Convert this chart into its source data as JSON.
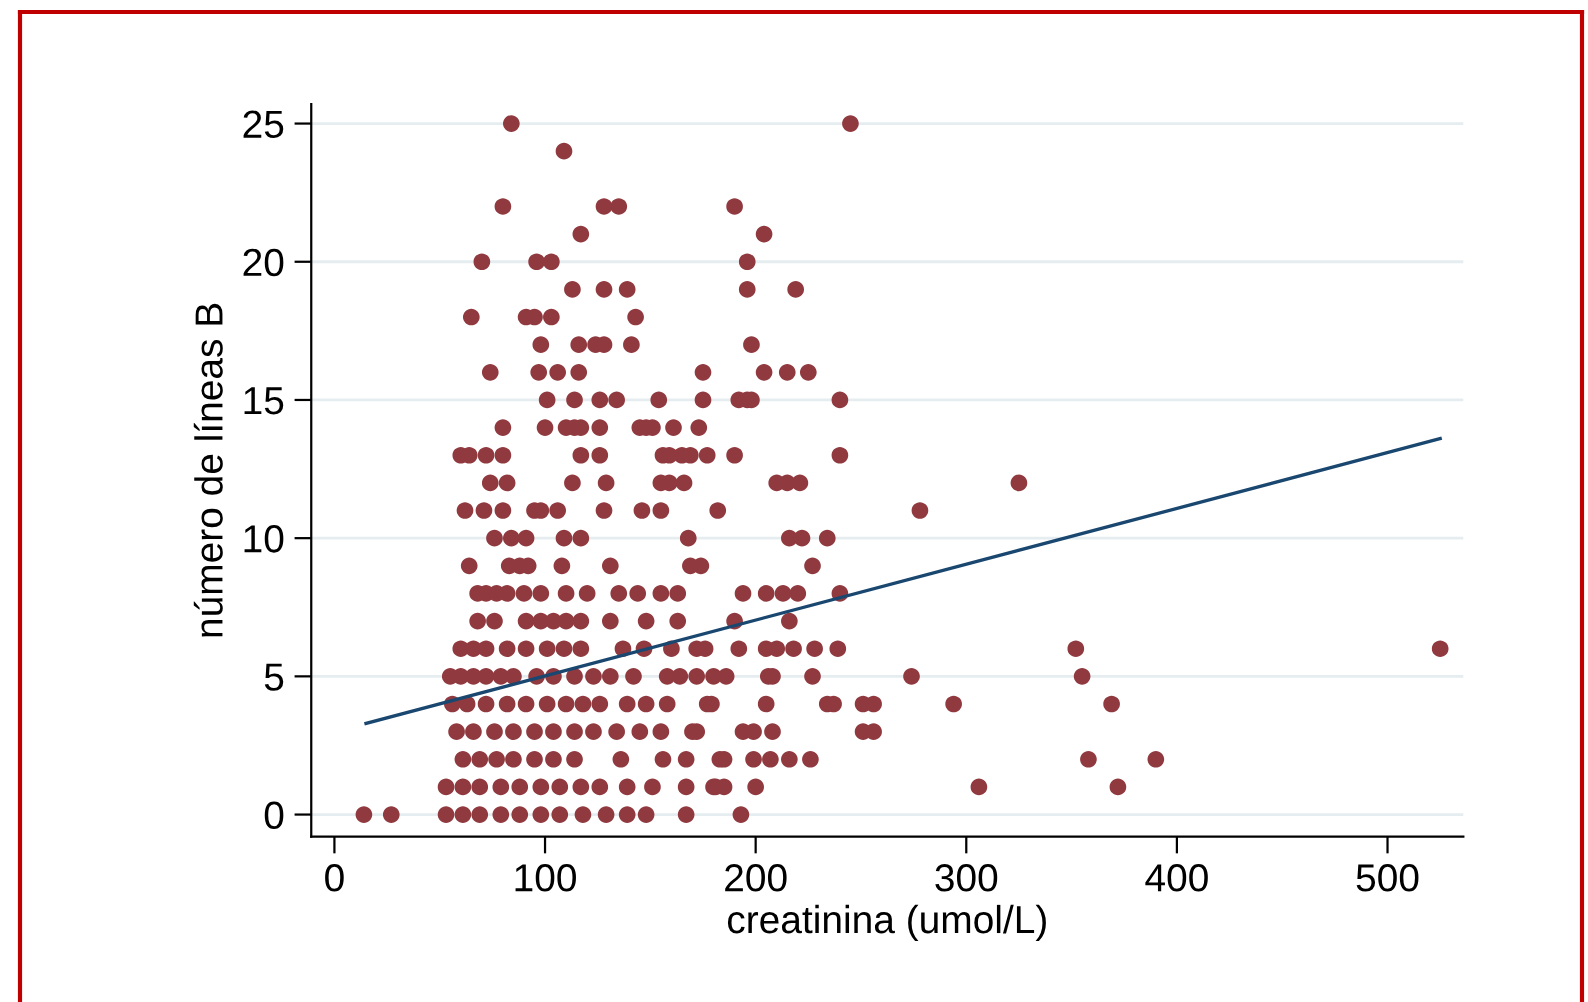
{
  "chart_data": {
    "type": "scatter",
    "xlabel": "creatinina (umol/L)",
    "ylabel": "número de líneas B",
    "xlim": [
      -11,
      536
    ],
    "ylim": [
      -0.8,
      25.7
    ],
    "xticks": [
      0,
      100,
      200,
      300,
      400,
      500
    ],
    "yticks": [
      0,
      5,
      10,
      15,
      20,
      25
    ],
    "grid": "y",
    "legend": false,
    "series": [
      {
        "marker": "circle",
        "color": "#903a40",
        "x": [
          84,
          245,
          109,
          80,
          128,
          135,
          190,
          117,
          204,
          70,
          96,
          103,
          196,
          113,
          128,
          139,
          196,
          219,
          65,
          91,
          95,
          103,
          143,
          98,
          116,
          124,
          128,
          141,
          198,
          74,
          97,
          106,
          116,
          175,
          204,
          215,
          225,
          101,
          114,
          126,
          134,
          154,
          175,
          192,
          196,
          198,
          240,
          80,
          100,
          110,
          114,
          117,
          126,
          145,
          148,
          151,
          161,
          173,
          60,
          64,
          72,
          80,
          117,
          126,
          156,
          159,
          165,
          169,
          177,
          190,
          240,
          74,
          82,
          113,
          129,
          155,
          159,
          166,
          210,
          215,
          221,
          325,
          62,
          71,
          80,
          95,
          98,
          106,
          128,
          146,
          155,
          182,
          278,
          76,
          84,
          91,
          109,
          117,
          168,
          216,
          222,
          234,
          64,
          83,
          88,
          92,
          108,
          131,
          169,
          174,
          227,
          68,
          72,
          77,
          82,
          90,
          98,
          110,
          120,
          135,
          144,
          155,
          163,
          194,
          205,
          213,
          220,
          240,
          68,
          76,
          91,
          98,
          104,
          110,
          117,
          131,
          148,
          163,
          190,
          216,
          60,
          66,
          72,
          82,
          91,
          101,
          109,
          117,
          137,
          147,
          160,
          172,
          176,
          192,
          205,
          210,
          218,
          228,
          239,
          352,
          525,
          55,
          60,
          66,
          72,
          79,
          85,
          96,
          104,
          114,
          123,
          131,
          142,
          158,
          164,
          172,
          180,
          186,
          206,
          208,
          227,
          274,
          355,
          56,
          63,
          72,
          82,
          91,
          101,
          110,
          118,
          126,
          139,
          148,
          158,
          177,
          179,
          205,
          234,
          237,
          251,
          256,
          294,
          369,
          58,
          66,
          76,
          85,
          95,
          104,
          114,
          123,
          134,
          145,
          155,
          170,
          172,
          194,
          199,
          208,
          251,
          256,
          61,
          69,
          77,
          85,
          95,
          104,
          114,
          136,
          156,
          167,
          183,
          185,
          199,
          207,
          216,
          226,
          358,
          390,
          53,
          61,
          69,
          79,
          88,
          98,
          107,
          117,
          126,
          139,
          151,
          167,
          180,
          181,
          185,
          200,
          306,
          372,
          14,
          27,
          53,
          61,
          69,
          79,
          88,
          98,
          107,
          118,
          129,
          139,
          148,
          167,
          193
        ],
        "values": [
          25,
          25,
          24,
          22,
          22,
          22,
          22,
          21,
          21,
          20,
          20,
          20,
          20,
          19,
          19,
          19,
          19,
          19,
          18,
          18,
          18,
          18,
          18,
          17,
          17,
          17,
          17,
          17,
          17,
          16,
          16,
          16,
          16,
          16,
          16,
          16,
          16,
          15,
          15,
          15,
          15,
          15,
          15,
          15,
          15,
          15,
          15,
          14,
          14,
          14,
          14,
          14,
          14,
          14,
          14,
          14,
          14,
          14,
          13,
          13,
          13,
          13,
          13,
          13,
          13,
          13,
          13,
          13,
          13,
          13,
          13,
          12,
          12,
          12,
          12,
          12,
          12,
          12,
          12,
          12,
          12,
          12,
          11,
          11,
          11,
          11,
          11,
          11,
          11,
          11,
          11,
          11,
          11,
          10,
          10,
          10,
          10,
          10,
          10,
          10,
          10,
          10,
          9,
          9,
          9,
          9,
          9,
          9,
          9,
          9,
          9,
          8,
          8,
          8,
          8,
          8,
          8,
          8,
          8,
          8,
          8,
          8,
          8,
          8,
          8,
          8,
          8,
          8,
          7,
          7,
          7,
          7,
          7,
          7,
          7,
          7,
          7,
          7,
          7,
          7,
          6,
          6,
          6,
          6,
          6,
          6,
          6,
          6,
          6,
          6,
          6,
          6,
          6,
          6,
          6,
          6,
          6,
          6,
          6,
          6,
          6,
          5,
          5,
          5,
          5,
          5,
          5,
          5,
          5,
          5,
          5,
          5,
          5,
          5,
          5,
          5,
          5,
          5,
          5,
          5,
          5,
          5,
          5,
          4,
          4,
          4,
          4,
          4,
          4,
          4,
          4,
          4,
          4,
          4,
          4,
          4,
          4,
          4,
          4,
          4,
          4,
          4,
          4,
          4,
          3,
          3,
          3,
          3,
          3,
          3,
          3,
          3,
          3,
          3,
          3,
          3,
          3,
          3,
          3,
          3,
          3,
          3,
          2,
          2,
          2,
          2,
          2,
          2,
          2,
          2,
          2,
          2,
          2,
          2,
          2,
          2,
          2,
          2,
          2,
          2,
          1,
          1,
          1,
          1,
          1,
          1,
          1,
          1,
          1,
          1,
          1,
          1,
          1,
          1,
          1,
          1,
          1,
          1,
          0,
          0,
          0,
          0,
          0,
          0,
          0,
          0,
          0,
          0,
          0,
          0,
          0,
          0,
          0
        ]
      },
      {
        "type": "line",
        "color": "#1a476f",
        "x": [
          15,
          525
        ],
        "values": [
          3.3,
          13.6
        ],
        "line_style": "solid"
      }
    ]
  }
}
